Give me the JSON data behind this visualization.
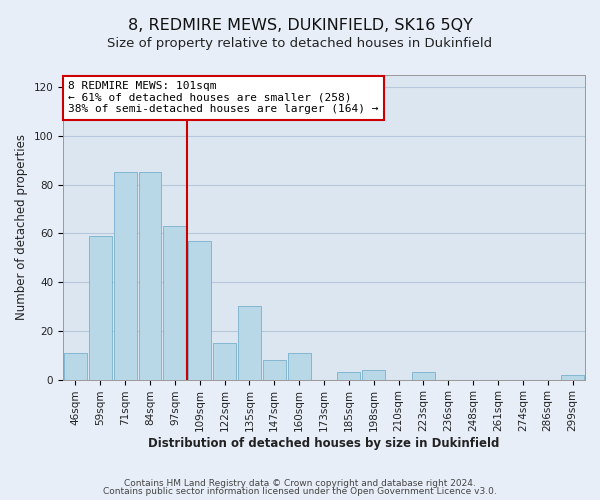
{
  "title": "8, REDMIRE MEWS, DUKINFIELD, SK16 5QY",
  "subtitle": "Size of property relative to detached houses in Dukinfield",
  "xlabel": "Distribution of detached houses by size in Dukinfield",
  "ylabel": "Number of detached properties",
  "bar_labels": [
    "46sqm",
    "59sqm",
    "71sqm",
    "84sqm",
    "97sqm",
    "109sqm",
    "122sqm",
    "135sqm",
    "147sqm",
    "160sqm",
    "173sqm",
    "185sqm",
    "198sqm",
    "210sqm",
    "223sqm",
    "236sqm",
    "248sqm",
    "261sqm",
    "274sqm",
    "286sqm",
    "299sqm"
  ],
  "bar_values": [
    11,
    59,
    85,
    85,
    63,
    57,
    15,
    30,
    8,
    11,
    0,
    3,
    4,
    0,
    3,
    0,
    0,
    0,
    0,
    0,
    2
  ],
  "bar_color": "#b8d8e8",
  "bar_edge_color": "#7ab0cc",
  "highlight_bar_index": 4,
  "highlight_line_color": "#cc0000",
  "annotation_text": "8 REDMIRE MEWS: 101sqm\n← 61% of detached houses are smaller (258)\n38% of semi-detached houses are larger (164) →",
  "annotation_box_color": "#ffffff",
  "annotation_box_edge_color": "#cc0000",
  "ylim": [
    0,
    125
  ],
  "yticks": [
    0,
    20,
    40,
    60,
    80,
    100,
    120
  ],
  "footer_line1": "Contains HM Land Registry data © Crown copyright and database right 2024.",
  "footer_line2": "Contains public sector information licensed under the Open Government Licence v3.0.",
  "background_color": "#e8eef8",
  "plot_background_color": "#dce6f0",
  "grid_color": "#b8c8dc",
  "title_fontsize": 11.5,
  "subtitle_fontsize": 9.5,
  "axis_label_fontsize": 8.5,
  "tick_fontsize": 7.5,
  "footer_fontsize": 6.5,
  "annotation_fontsize": 8
}
